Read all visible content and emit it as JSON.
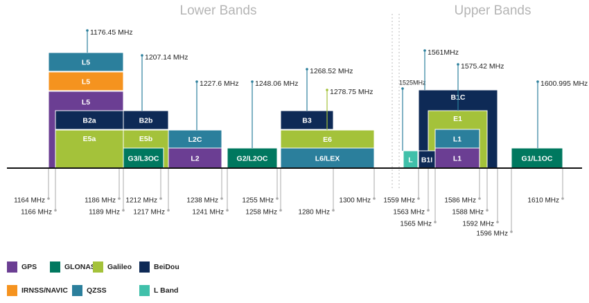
{
  "headings": {
    "lower": "Lower Bands",
    "upper": "Upper Bands"
  },
  "blocks": [
    "L5",
    "L5",
    "L5",
    "B2a",
    "E5a",
    "B2b",
    "E5b",
    "G3/L3OC",
    "L2C",
    "L2",
    "G2/L2OC",
    "B3",
    "E6",
    "L6/LEX",
    "B1C",
    "E1",
    "L1",
    "L1",
    "B1I",
    "L",
    "G1/L1OC"
  ],
  "center_frequencies": [
    "1176.45 MHz",
    "1207.14 MHz",
    "1227.6 MHz",
    "1248.06 MHz",
    "1268.52 MHz",
    "1278.75 MHz",
    "1525MHz",
    "1561MHz",
    "1575.42 MHz",
    "1600.995 MHz"
  ],
  "edge_frequencies": [
    "1164 MHz",
    "1166 MHz",
    "1186 MHz",
    "1189 MHz",
    "1212 MHz",
    "1217 MHz",
    "1238 MHz",
    "1241 MHz",
    "1255 MHz",
    "1258 MHz",
    "1280 MHz",
    "1300 MHz",
    "1559 MHz",
    "1563 MHz",
    "1565 MHz",
    "1586 MHz",
    "1588 MHz",
    "1592 MHz",
    "1596 MHz",
    "1610 MHz"
  ],
  "legend": [
    "GPS",
    "GLONASS",
    "Galileo",
    "BeiDou",
    "IRNSS/NAVIC",
    "QZSS",
    "L Band"
  ]
}
